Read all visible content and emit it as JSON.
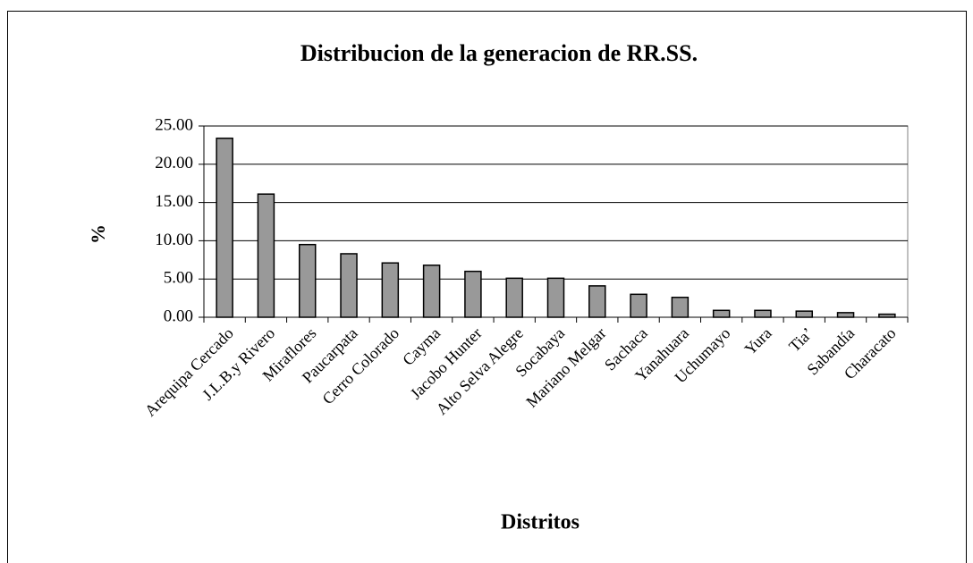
{
  "chart_data": {
    "type": "bar",
    "title": "Distribucion de la generacion de RR.SS.",
    "y_label": "%",
    "x_label": "Distritos",
    "categories": [
      "Arequipa Cercado",
      "J.L.B.y Rivero",
      "Miraflores",
      "Paucarpata",
      "Cerro Colorado",
      "Cayma",
      "Jacobo Hunter",
      "Alto Selva Alegre",
      "Socabaya",
      "Mariano Melgar",
      "Sachaca",
      "Yanahuara",
      "Uchumayo",
      "Yura",
      "Tia’",
      "Sabandía",
      "Characato"
    ],
    "values": [
      23.4,
      16.1,
      9.5,
      8.3,
      7.1,
      6.8,
      6.0,
      5.1,
      5.1,
      4.1,
      3.0,
      2.6,
      0.9,
      0.9,
      0.8,
      0.6,
      0.4
    ],
    "color": "#999999",
    "ylim": [
      0,
      25
    ],
    "yticks": [
      {
        "value": 0,
        "label": "0.00"
      },
      {
        "value": 5,
        "label": "5.00"
      },
      {
        "value": 10,
        "label": "10.00"
      },
      {
        "value": 15,
        "label": "15.00"
      },
      {
        "value": 20,
        "label": "20.00"
      },
      {
        "value": 25,
        "label": "25.00"
      }
    ],
    "grid": true
  }
}
